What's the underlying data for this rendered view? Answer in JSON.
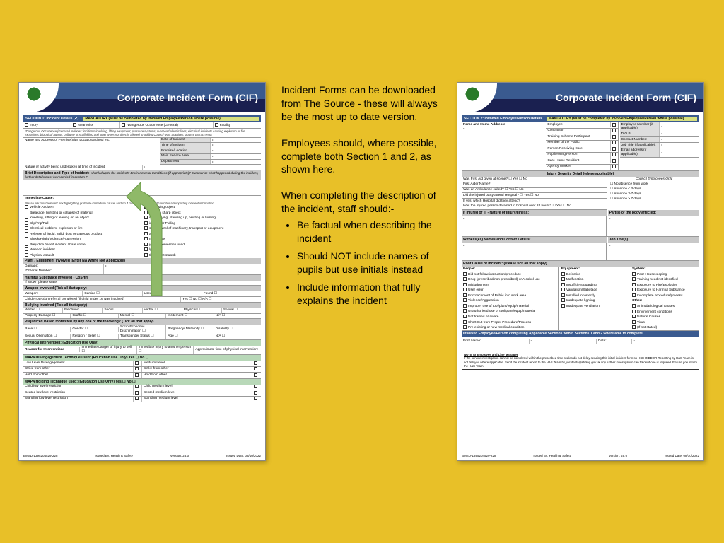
{
  "background_color": "#e8c028",
  "form_header_color": "#3a5a8f",
  "form_header_dark": "#1a2050",
  "form_title": "Corporate Incident Form (CIF)",
  "center": {
    "p1": "Incident Forms can be downloaded from The Source - these will always be the most up to date version.",
    "p2": "Employees should, where possible, complete both Section 1 and 2, as shown here.",
    "p3": "When completing the description of the incident, staff should:-",
    "bullets": [
      "Be factual when describing the incident",
      "Should NOT include names of pupils but use initials instead",
      "Include information that fully explains the incident"
    ]
  },
  "left": {
    "section_title": "SECTION 1: Incident Details (✔)",
    "mandatory": "MANDATORY (Must be completed by Involved Employee/Person where possible)",
    "top_checks": [
      "Injury",
      "Near Miss",
      "*Dangerous Occurrence (General)",
      "Fatality"
    ],
    "dang_note": "*Dangerous Occurrence (General) includes: incidents involving, lifting equipment, pressure systems, overhead electric lines, electrical incidents causing explosion or fire, explosives, biological agents, collapse of scaffolding and other types not directly aligned to Stirling Council work practices. Source Extract=HSE",
    "name_addr": "Name and Address of Premise/Site/ Location/School etc.",
    "date_rows": [
      "Date of Incident",
      "Time of Incident",
      "Premise/Location",
      "Main Service Area",
      "Department"
    ],
    "activity": "Nature of activity being undertaken at time of incident:",
    "brief": "Brief Description and Type of Incident:",
    "brief_note": "what led up to the incident? Environmental Conditions (if appropriate)? Summarise what happened during the incident, further details must be recorded in section 7",
    "immediate": "Immediate Cause:",
    "immediate_note": "Please tick most relevant box highlighting probable immediate cause, section 4 must be populated with additional/supporting incident information.",
    "imm_left": [
      "Vehicle Accident",
      "Breakage, bursting or collapse of material",
      "Kneeling, sitting or leaning on an object",
      "Slip/Trip/Fall",
      "Electrical problem, explosion or fire",
      "Release of liquid, solid, dust or gaseous product",
      "Shock/Fright/Violence/Aggression",
      "Prejudice based incident / hate crime",
      "Weapon incident",
      "Physical assault"
    ],
    "imm_right": [
      "by moving object",
      "ing on a sharp object",
      "ing, carrying, standing up, twisting or turning",
      "ing and/or Pulling",
      "ss of control of machinery, transport or equipment",
      "all",
      "mal abuse",
      "ysical intervention used",
      "lying",
      "ther (if not stated)"
    ],
    "plant": "Plant / Equipment Involved (Enter NA where Not Applicable)",
    "plant_rows": [
      "Damage:",
      "ID/Serial Number:"
    ],
    "harmful": "Harmful Substance Involved - CoSHH",
    "harmful_row": "If known please state:",
    "weapon": "Weapon Involved (Tick all that apply)",
    "weapon_opts": [
      "Weapon:",
      "Carried ☐",
      "Used ☐",
      "Found ☐"
    ],
    "cpr": "Child Protection referral completed (if child under 16 was involved)",
    "bully": "Bullying Involved (Tick all that apply)",
    "bully_r1": [
      "Written ☐",
      "Electronic ☐",
      "Social ☐",
      "Verbal ☐",
      "Physical ☐",
      "Sexual ☐"
    ],
    "bully_r2": [
      "Property Damage ☐",
      "Graffiti ☐",
      "Mental ☐",
      "Incitement ☐",
      "N/A ☐"
    ],
    "prej": "Prejudiced Based motivated by any one of the following? (Tick all that apply)",
    "prej_r1": [
      "Race ☐",
      "Gender ☐",
      "Socio-Economic Discrimination ☐",
      "Pregnancy/ Maternity ☐",
      "Disability ☐"
    ],
    "prej_r2": [
      "Sexual Orientation ☐",
      "Religion / Belief ☐",
      "Transgender Status ☐",
      "Age ☐",
      "N/A ☐"
    ],
    "phys": "Physical Intervention: (Education Use Only)",
    "reason": "Reason for Intervention:",
    "reason_opts": [
      "Immediate danger of injury to self ☐",
      "Immediate injury to another person ☐",
      "Approximate time of physical intervention:"
    ],
    "mapa_d": "MAPA Disengagement Technique used: (Education Use Only)   Yes ☐   No ☐",
    "mapa_d_rows": [
      [
        "Low Level Disengagement",
        "Medium Level"
      ],
      [
        "Strike from other",
        "Strike from other"
      ],
      [
        "Hold from other",
        "Hold from other"
      ]
    ],
    "mapa_h": "MAPA Holding Technique used: (Education Use Only)   Yes ☐   No ☐",
    "mapa_h_rows": [
      [
        "Child low level restriction",
        "Child medium level"
      ],
      [
        "Seated low level restriction",
        "Seated medium level"
      ],
      [
        "Standing low level restriction",
        "Standing medium level"
      ]
    ]
  },
  "right": {
    "section_title": "SECTION 2: Involved Employee/Person Details",
    "mandatory": "MANDATORY (Must be completed by Involved Employee/Person where possible)",
    "nha": "Name and Home Address:",
    "roles": [
      "Employee",
      "Contractor",
      "Training Scheme Participant",
      "Member of the Public",
      "Person Receiving Care",
      "Pupil/Young Person",
      "Care Home Resident",
      "Agency Worker"
    ],
    "right_fields": [
      "Employee Number (if applicable):",
      "D.O.B:",
      "Contact Number:",
      "Job Title (if applicable):",
      "Email address (if applicable):"
    ],
    "injury_bar": "Injury Severity Detail (where applicable)",
    "injury_rows": [
      "Was First Aid given at scene?   ☐ Yes ☐ No",
      "First Aider Name?",
      "Was an Ambulance called?   ☐ Yes ☐ No",
      "Did the injured party attend Hospital?   ☐ Yes ☐ No",
      "If yes, which Hospital did they attend?",
      "Was the injured person detained in hospital over 24 hours?   ☐ Yes ☐ No"
    ],
    "council_only": "Council Employees Only",
    "absence": [
      "☐   No absence from work",
      "☐   Absence < 3 days",
      "☐   Absence 3-7 days",
      "☐   Absence > 7 days"
    ],
    "injured_bar": "If injured or ill - Nature of Injury/Illness:",
    "parts": "Part(s) of the body affected:",
    "witness": "Witness(es) Names and Contact Details:",
    "jobt": "Job Title(s)",
    "root": "Root Cause of Incident: (Please tick all that apply)",
    "root_cols": {
      "people_h": "People:",
      "people": [
        "Did not follow instruction/procedure",
        "Drug (prescribed/non prescribed) or Alcohol use",
        "Misjudgement",
        "User error",
        "Encroachment of Public into work area",
        "Violence/Aggression",
        "Improper use of tool/plant/equip/material",
        "Unauthorised use of tool/plant/equip/material",
        "Not trained or aware",
        "Short Cut from Proper Procedure/Process",
        "Pre-existing or new medical condition"
      ],
      "equip_h": "Equipment:",
      "equip": [
        "Defective",
        "Malfunction",
        "Insufficient guarding",
        "Vandalism/Sabotage",
        "Installed incorrectly",
        "Inadequate lighting",
        "Inadequate ventilation"
      ],
      "system_h": "System:",
      "system": [
        "Poor Housekeeping",
        "Training need not identified",
        "Exposure to Fire/Explosion",
        "Exposure to Harmful Substance",
        "Incomplete procedure/process"
      ],
      "other_h": "Other:",
      "other": [
        "Animal/Biological causes",
        "Environment conditions",
        "Natural Causes",
        "Virus",
        "(If not stated)"
      ]
    },
    "inv_bar": "Involved Employee/Person completing Applicable Sections within Sections 1 and 2 where able to complete.",
    "print": "Print Name:",
    "date": "Date:",
    "note_h": "NOTE to Employee and Line Manager",
    "note_body": "If the service investigation cannot be completed within the prescribed time scales do not delay sending this initial incident form so HSE RIDDOR Reporting by H&S Team is not delayed where applicable. Send the incident report to the H&S Team hs_incidents@stirling.gov.uk any further investigation can follow if one is required. Ensure you inform the H&S Team."
  },
  "footer": {
    "ref": "BMSD-1395204529-228",
    "issued": "Issued By: Health & Safety",
    "ver": "Version: 25.0",
    "date": "Issued Date: 08/10/2022"
  },
  "arrow_color": "#8fb968"
}
